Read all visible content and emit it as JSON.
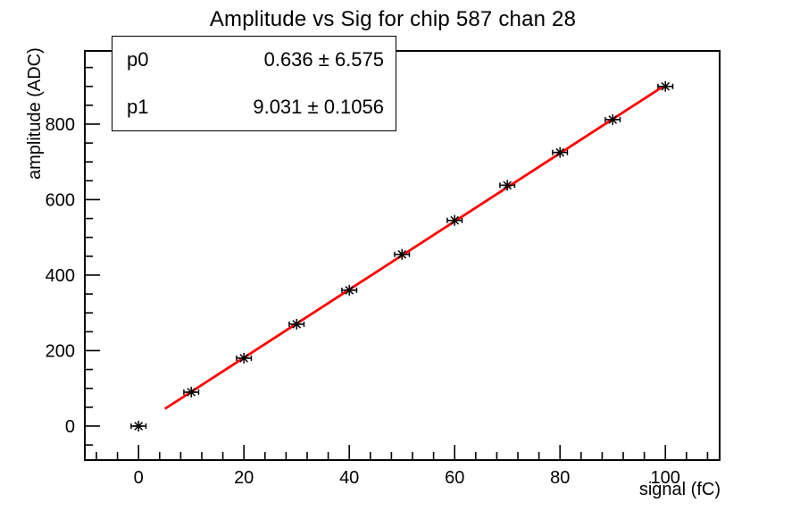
{
  "title": "Amplitude vs Sig for chip 587 chan 28",
  "stats_box": {
    "rows": [
      {
        "name": "p0",
        "value": "0.636 ± 6.575"
      },
      {
        "name": "p1",
        "value": "9.031 ± 0.1056"
      }
    ]
  },
  "chart_data": {
    "type": "scatter",
    "title": "Amplitude vs Sig for chip 587 chan 28",
    "xlabel": "signal (fC)",
    "ylabel": "amplitude (ADC)",
    "x": [
      0,
      10,
      20,
      30,
      40,
      50,
      60,
      70,
      80,
      90,
      100
    ],
    "y": [
      0,
      90,
      180,
      270,
      360,
      455,
      545,
      638,
      725,
      812,
      900
    ],
    "xerr": 1.4,
    "marker": "asterisk",
    "marker_color": "#000000",
    "fit": {
      "function": "p0 + p1*x",
      "p0": 0.636,
      "p0_err": 6.575,
      "p1": 9.031,
      "p1_err": 0.1056,
      "line_color": "#ff0000",
      "x_start": 5,
      "x_end": 99.5
    },
    "xlim": [
      -10.2,
      110.3
    ],
    "ylim": [
      -90,
      994
    ],
    "xticks": [
      0,
      20,
      40,
      60,
      80,
      100
    ],
    "yticks": [
      0,
      200,
      400,
      600,
      800
    ],
    "x_minor_step": 4,
    "x_major_step": 20,
    "y_minor_step": 50,
    "y_major_step": 200,
    "grid": false,
    "legend": "none",
    "background": "#ffffff",
    "frame_color": "#000000"
  }
}
